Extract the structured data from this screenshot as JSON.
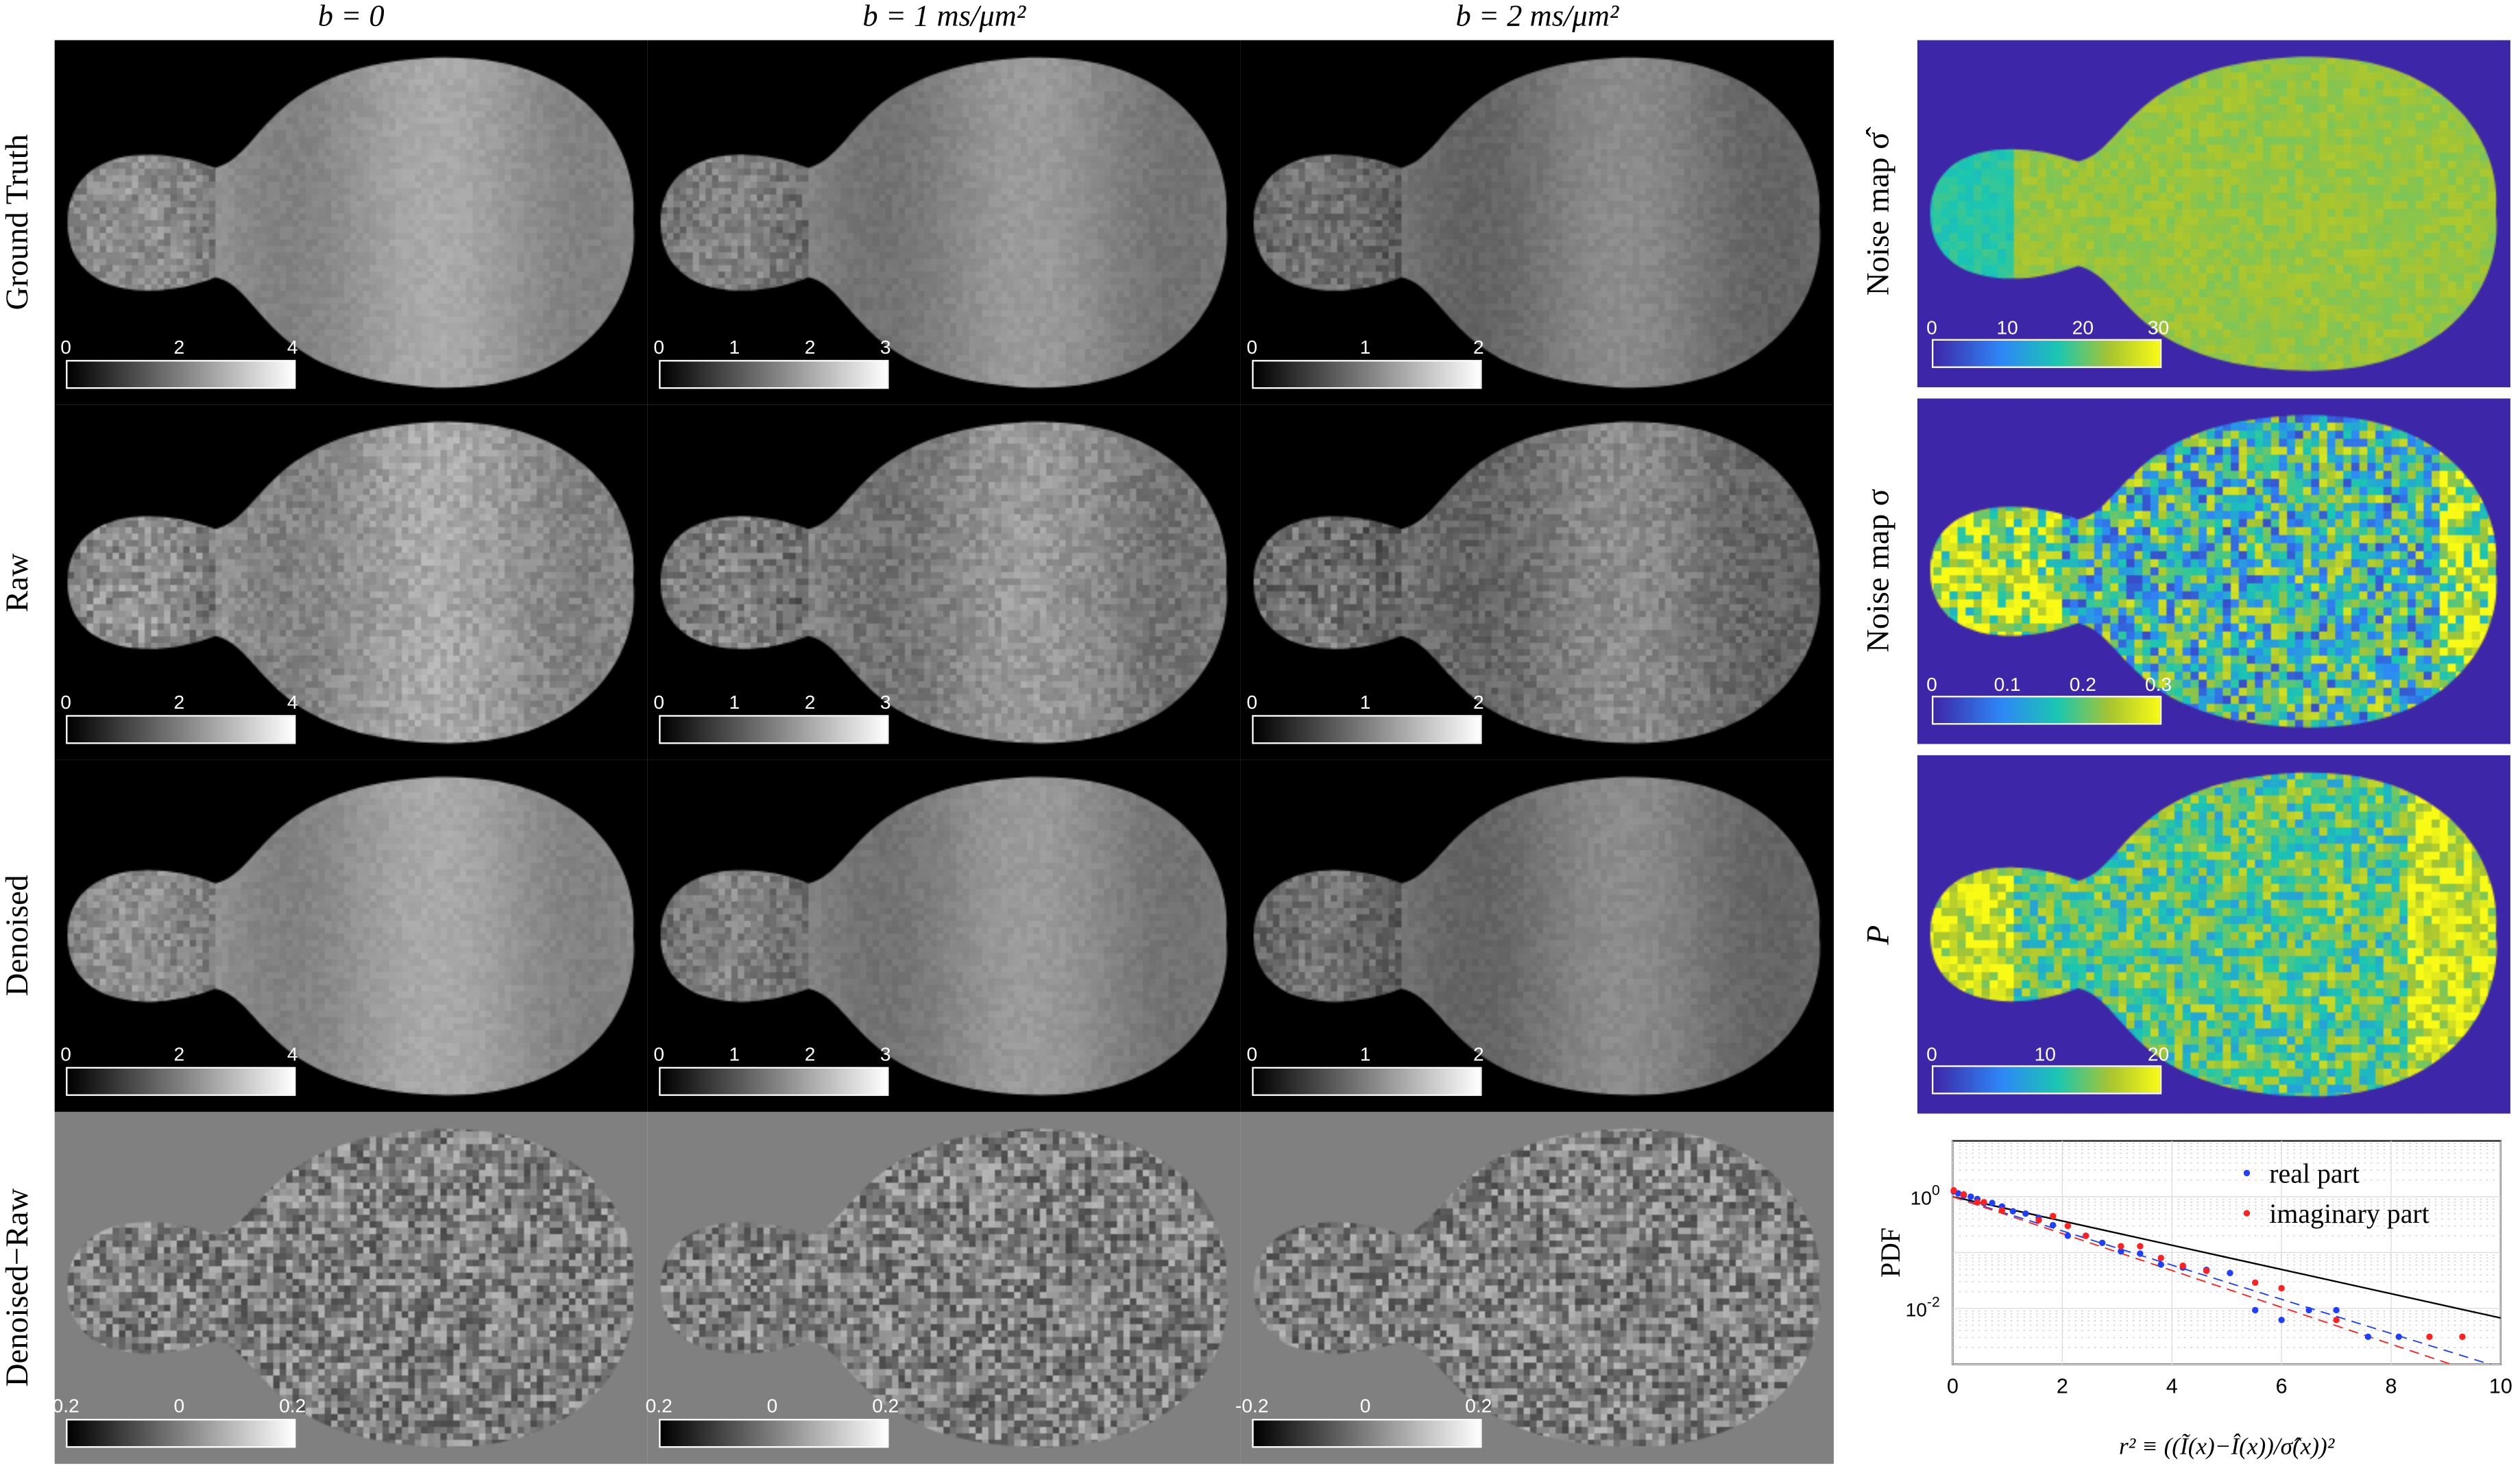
{
  "columns": [
    "b = 0",
    "b = 1 ms/μm²",
    "b = 2 ms/μm²"
  ],
  "rows": [
    {
      "label": "Ground Truth",
      "ticks": [
        [
          "0",
          "2",
          "4"
        ],
        [
          "0",
          "1",
          "2",
          "3"
        ],
        [
          "0",
          "1",
          "2"
        ]
      ]
    },
    {
      "label": "Raw",
      "ticks": [
        [
          "0",
          "2",
          "4"
        ],
        [
          "0",
          "1",
          "2",
          "3"
        ],
        [
          "0",
          "1",
          "2"
        ]
      ]
    },
    {
      "label": "Denoised",
      "ticks": [
        [
          "0",
          "2",
          "4"
        ],
        [
          "0",
          "1",
          "2",
          "3"
        ],
        [
          "0",
          "1",
          "2"
        ]
      ]
    },
    {
      "label": "Denoised−Raw",
      "ticks": [
        [
          "0.2",
          "0",
          "0.2"
        ],
        [
          "0.2",
          "0",
          "0.2"
        ],
        [
          "-0.2",
          "0",
          "0.2"
        ]
      ]
    }
  ],
  "maps": [
    {
      "label": "Noise map σ̂",
      "ticks": [
        "0",
        "10",
        "20",
        "30"
      ]
    },
    {
      "label": "Noise map σ",
      "ticks": [
        "0",
        "0.1",
        "0.2",
        "0.3"
      ]
    },
    {
      "label": "P",
      "ticks": [
        "0",
        "10",
        "20"
      ]
    }
  ],
  "colors": {
    "map_background": "#3e26a8",
    "real": "#1f3fff",
    "imaginary": "#ff2020"
  },
  "chart_data": {
    "type": "scatter",
    "ylabel": "PDF",
    "xlabel": "r² ≡ ((Ĩ(x)−Î(x))/σ̂(x))²",
    "xlim": [
      0,
      10
    ],
    "ylim": [
      0.001,
      10
    ],
    "yscale": "log",
    "grid": true,
    "xticks": [
      "0",
      "2",
      "4",
      "6",
      "8",
      "10"
    ],
    "yticks": [
      "10^0",
      "10^-2"
    ],
    "legend_placement": "top-right",
    "series": [
      {
        "name": "real part",
        "x": [
          0.02,
          0.1,
          0.2,
          0.33,
          0.45,
          0.57,
          0.72,
          0.9,
          1.1,
          1.33,
          1.57,
          1.83,
          2.1,
          2.43,
          2.73,
          3.07,
          3.42,
          3.8,
          4.2,
          4.63,
          5.06,
          5.52,
          6.0,
          6.5,
          7.0,
          7.58,
          8.14
        ],
        "y": [
          1.25,
          1.15,
          1.05,
          1.0,
          0.91,
          0.77,
          0.77,
          0.67,
          0.55,
          0.5,
          0.42,
          0.31,
          0.2,
          0.2,
          0.149,
          0.105,
          0.096,
          0.061,
          0.054,
          0.049,
          0.043,
          0.0093,
          0.0062,
          0.0093,
          0.0093,
          0.0031,
          0.0031
        ]
      },
      {
        "name": "imaginary part",
        "x": [
          0.02,
          0.2,
          0.45,
          0.57,
          0.9,
          1.57,
          1.83,
          2.1,
          2.43,
          3.07,
          3.42,
          3.8,
          4.2,
          4.63,
          5.52,
          6.0,
          7.0,
          8.7,
          9.3
        ],
        "y": [
          1.3,
          1.1,
          0.79,
          0.8,
          0.57,
          0.38,
          0.45,
          0.3,
          0.2,
          0.13,
          0.13,
          0.08,
          0.058,
          0.047,
          0.029,
          0.023,
          0.0062,
          0.0031,
          0.0031
        ]
      }
    ],
    "lines": [
      {
        "style": "solid",
        "color": "#000000",
        "formula": "exp(-r²/2)"
      },
      {
        "style": "dashed",
        "color": "#1f3fff",
        "fit_slope": -0.705
      },
      {
        "style": "dashed",
        "color": "#ff2020",
        "fit_slope": -0.76
      }
    ]
  }
}
